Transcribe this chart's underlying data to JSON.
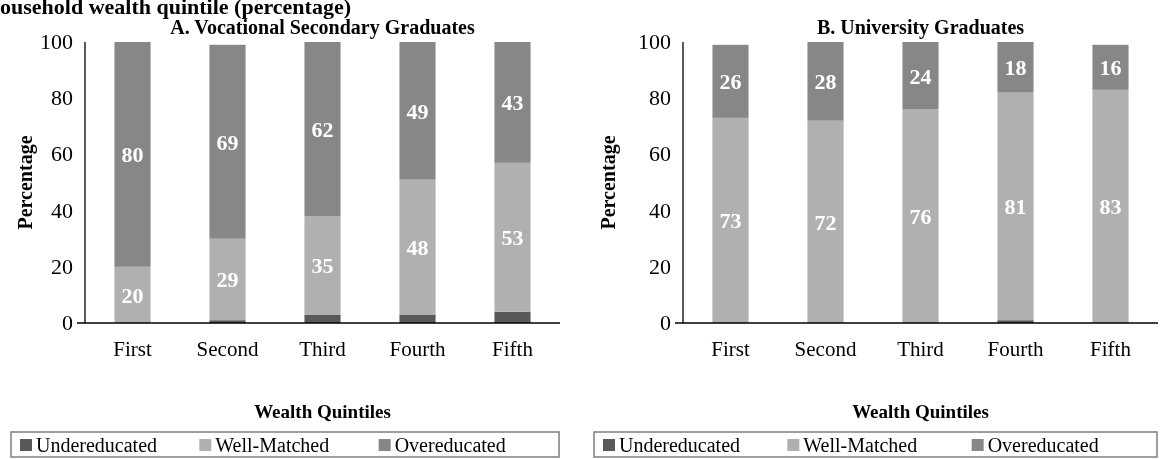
{
  "chart_data": [
    {
      "type": "bar",
      "title": "A. Vocational Secondary Graduates",
      "xlabel": "Wealth Quintiles",
      "ylabel": "Percentage",
      "annotations": [
        "ousehold wealth quintile (percentage)"
      ],
      "categories": [
        "First",
        "Second",
        "Third",
        "Fourth",
        "Fifth"
      ],
      "stacked": true,
      "ylim": [
        0,
        100
      ],
      "yticks": [
        0,
        20,
        40,
        60,
        80,
        100
      ],
      "grid": false,
      "legend": "bottom",
      "series": [
        {
          "name": "Undereducated",
          "color": "#595959",
          "values": [
            0,
            1,
            3,
            3,
            4
          ]
        },
        {
          "name": "Well-Matched",
          "color": "#b0b0b0",
          "values": [
            20,
            29,
            35,
            48,
            53
          ],
          "value_labels": [
            "20",
            "29",
            "35",
            "48",
            "53"
          ]
        },
        {
          "name": "Overeducated",
          "color": "#878787",
          "values": [
            80,
            69,
            62,
            49,
            43
          ],
          "value_labels": [
            "80",
            "69",
            "62",
            "49",
            "43"
          ]
        }
      ]
    },
    {
      "type": "bar",
      "title": "B. University Graduates",
      "xlabel": "Wealth Quintiles",
      "ylabel": "Percentage",
      "categories": [
        "First",
        "Second",
        "Third",
        "Fourth",
        "Fifth"
      ],
      "stacked": true,
      "ylim": [
        0,
        100
      ],
      "yticks": [
        0,
        20,
        40,
        60,
        80,
        100
      ],
      "grid": false,
      "legend": "bottom",
      "series": [
        {
          "name": "Undereducated",
          "color": "#595959",
          "values": [
            null,
            0,
            0,
            1,
            null
          ]
        },
        {
          "name": "Well-Matched",
          "color": "#b0b0b0",
          "values": [
            73,
            72,
            76,
            81,
            83
          ],
          "value_labels": [
            "73",
            "72",
            "76",
            "81",
            "83"
          ]
        },
        {
          "name": "Overeducated",
          "color": "#878787",
          "values": [
            26,
            28,
            24,
            18,
            16
          ],
          "value_labels": [
            "26",
            "28",
            "24",
            "18",
            "16"
          ]
        }
      ]
    }
  ]
}
